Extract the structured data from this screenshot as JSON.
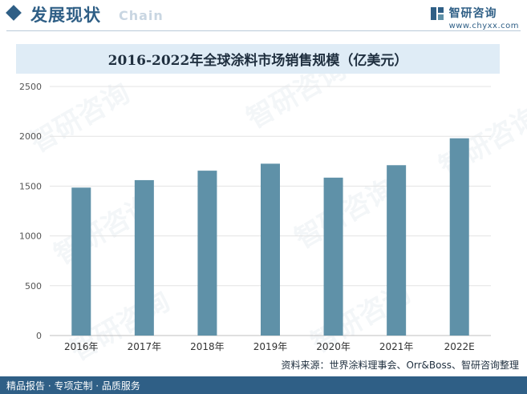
{
  "header": {
    "section_title": "发展现状",
    "ghost_word": "Chain",
    "brand_name": "智研咨询",
    "brand_url": "www.chyxx.com"
  },
  "watermark_text": "智研咨询",
  "source": "资料来源：世界涂料理事会、Orr&Boss、智研咨询整理",
  "footer": "精品报告 · 专项定制 · 品质服务",
  "colors": {
    "bar": "#5f91a8",
    "accent": "#2f5f86",
    "title_band": "#dfecf6"
  },
  "chart_data": {
    "type": "bar",
    "title": "2016-2022年全球涂料市场销售规模（亿美元）",
    "xlabel": "",
    "ylabel": "",
    "categories": [
      "2016年",
      "2017年",
      "2018年",
      "2019年",
      "2020年",
      "2021年",
      "2022E"
    ],
    "values": [
      1485,
      1560,
      1655,
      1725,
      1585,
      1710,
      1980
    ],
    "ylim": [
      0,
      2500
    ],
    "yticks": [
      0,
      500,
      1000,
      1500,
      2000,
      2500
    ],
    "grid": true,
    "legend": "none"
  }
}
